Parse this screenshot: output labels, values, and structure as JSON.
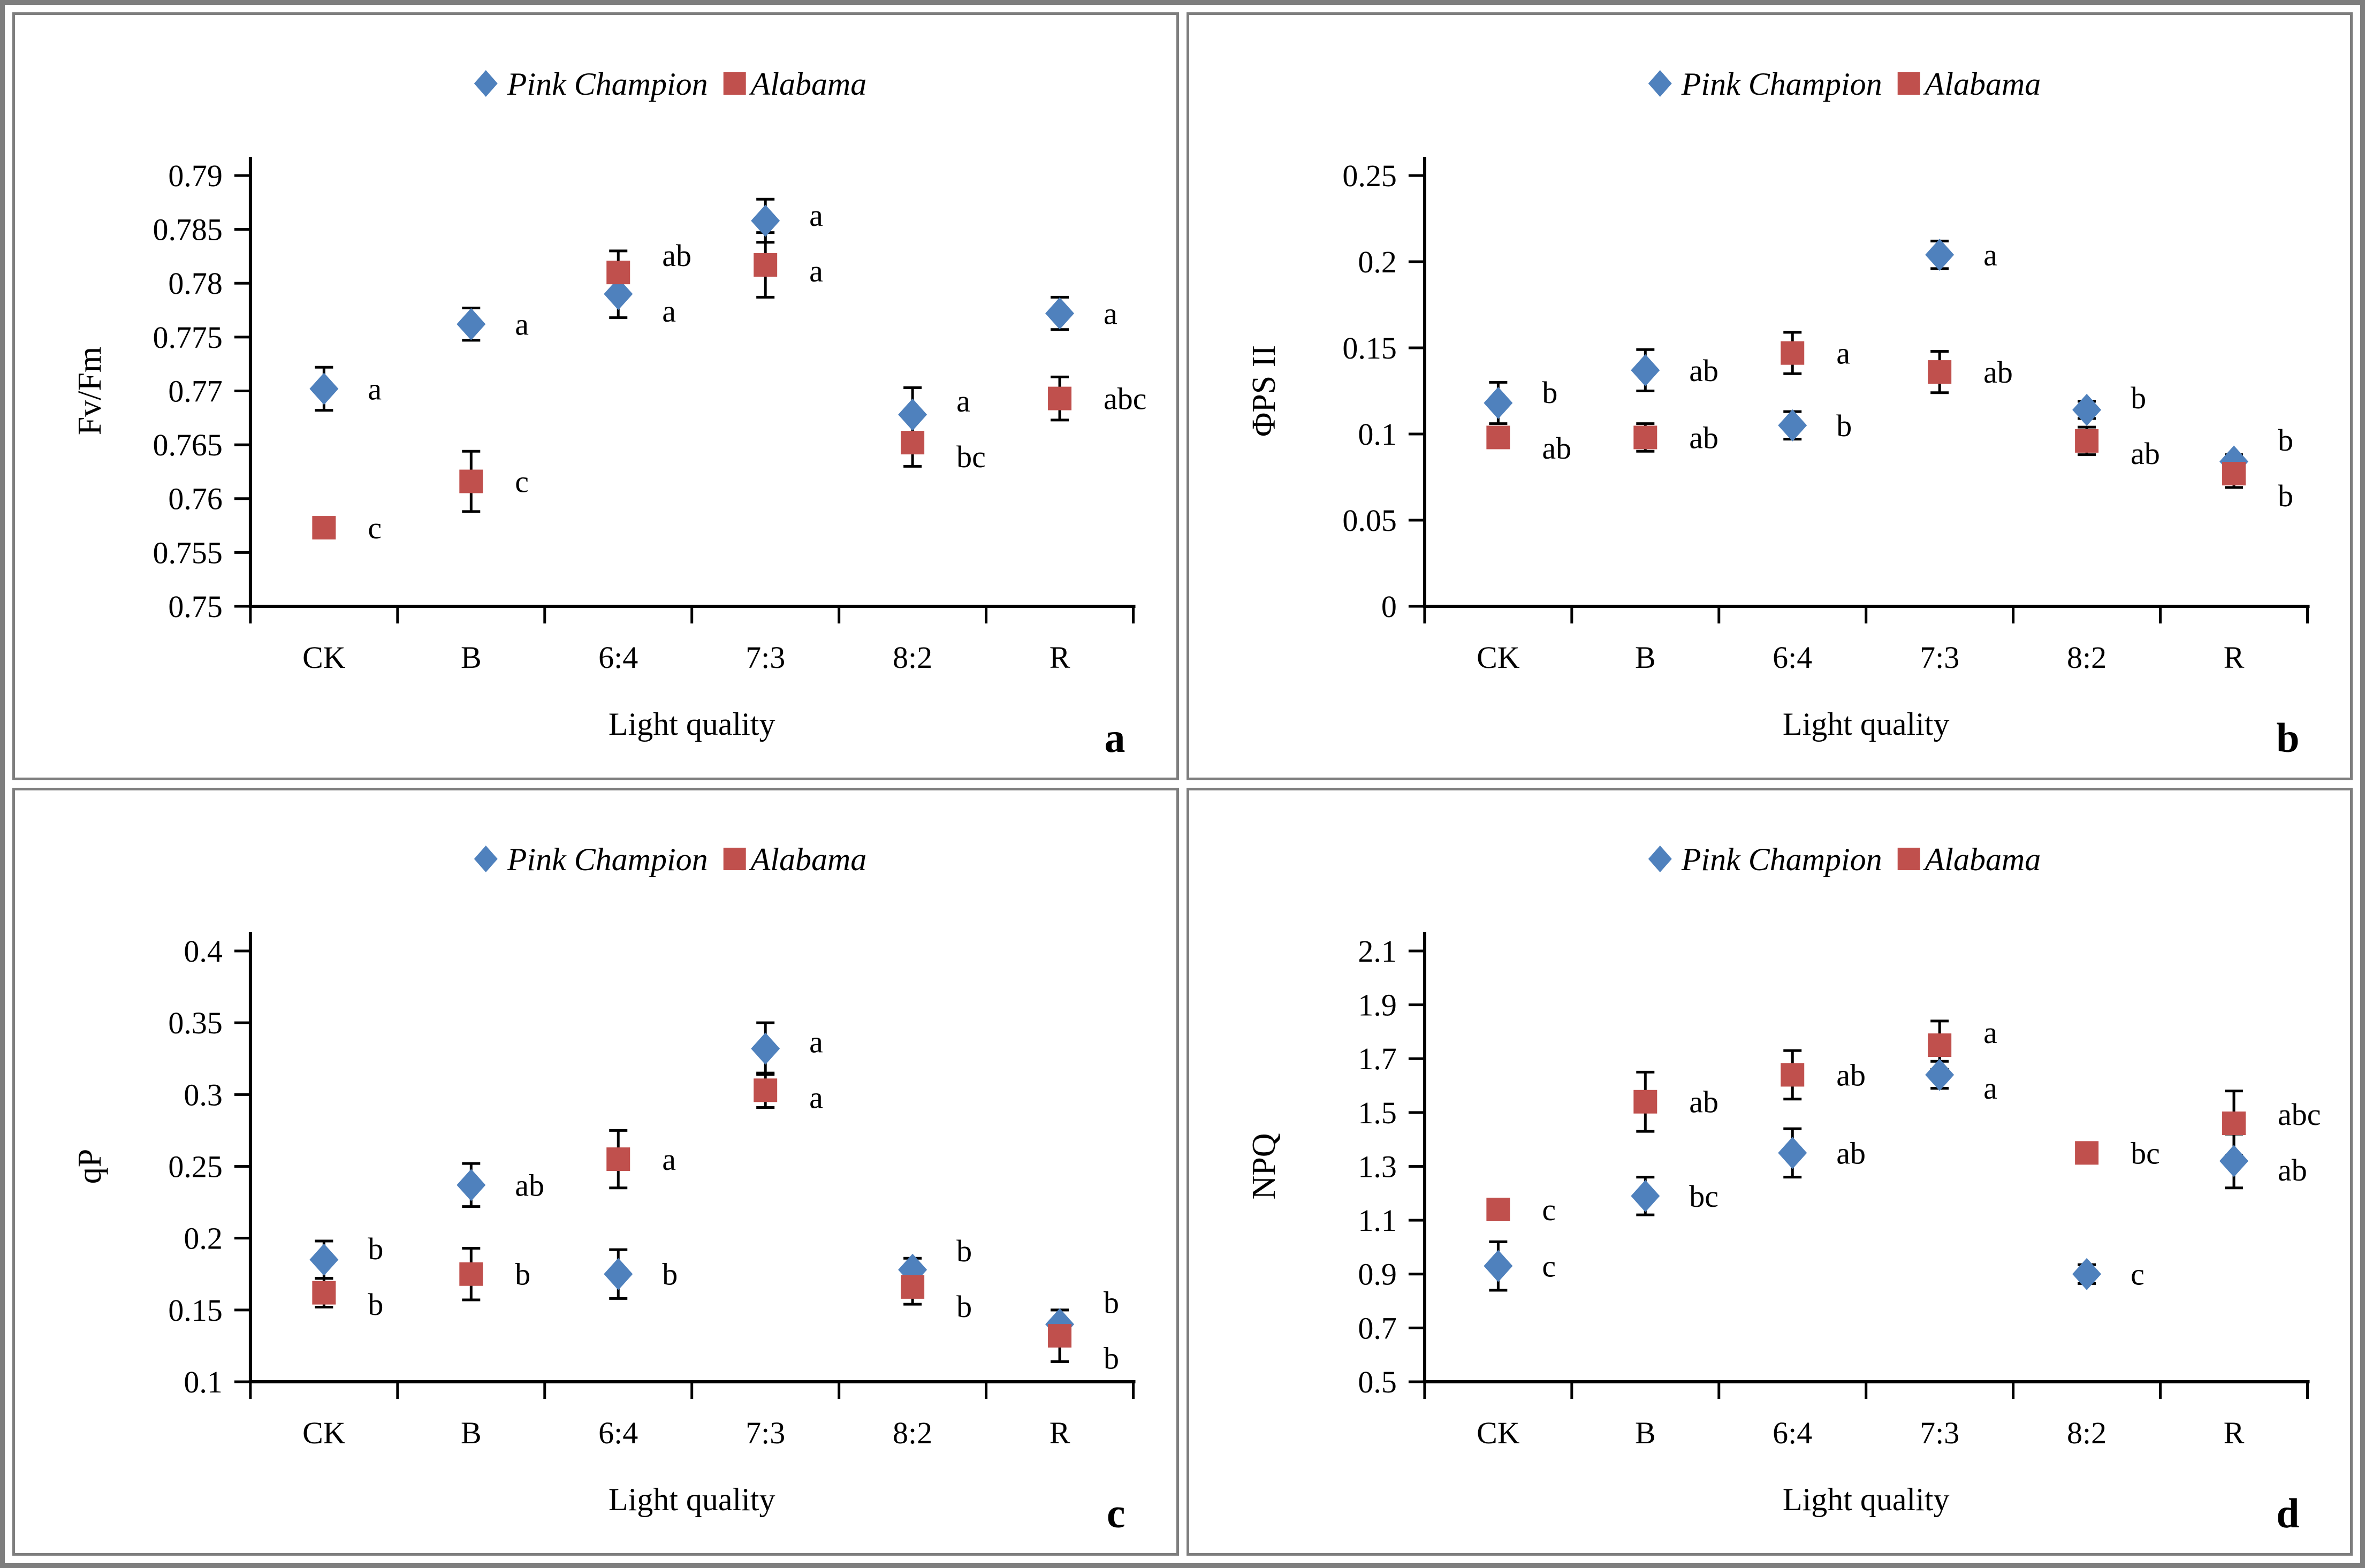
{
  "figure": {
    "panel_letters": [
      "a",
      "b",
      "c",
      "d"
    ],
    "x_axis_label": "Light quality",
    "categories": [
      "CK",
      "B",
      "6:4",
      "7:3",
      "8:2",
      "R"
    ]
  },
  "legend": {
    "items": [
      {
        "label": "Pink Champion",
        "marker": "diamond",
        "color": "#4F81BD"
      },
      {
        "label": "Alabama",
        "marker": "square",
        "color": "#C0504D"
      }
    ]
  },
  "chart_data": [
    {
      "panel": "a",
      "type": "scatter",
      "title": "",
      "xlabel": "Light quality",
      "ylabel": "Fv/Fm",
      "categories": [
        "CK",
        "B",
        "6:4",
        "7:3",
        "8:2",
        "R"
      ],
      "ylim": [
        0.75,
        0.79
      ],
      "ytick_step": 0.005,
      "ytick_decimals": 3,
      "grid": false,
      "legend_position": "top",
      "series": [
        {
          "name": "Pink Champion",
          "marker": "diamond",
          "color": "#4F81BD",
          "values": [
            0.7702,
            0.7762,
            0.779,
            0.7858,
            0.7678,
            0.7772
          ],
          "errors": [
            0.002,
            0.0015,
            0.0022,
            0.002,
            0.0025,
            0.0015
          ],
          "letters": [
            "a",
            "a",
            "a",
            "a",
            "a",
            "a"
          ]
        },
        {
          "name": "Alabama",
          "marker": "square",
          "color": "#C0504D",
          "values": [
            0.7573,
            0.7616,
            0.781,
            0.7817,
            0.7652,
            0.7693
          ],
          "errors": [
            0.0008,
            0.0028,
            0.002,
            0.003,
            0.0022,
            0.002
          ],
          "letters": [
            "c",
            "c",
            "ab",
            "a",
            "bc",
            "abc"
          ]
        }
      ]
    },
    {
      "panel": "b",
      "type": "scatter",
      "title": "",
      "xlabel": "Light quality",
      "ylabel": "ΦPS II",
      "categories": [
        "CK",
        "B",
        "6:4",
        "7:3",
        "8:2",
        "R"
      ],
      "ylim": [
        0,
        0.25
      ],
      "ytick_step": 0.05,
      "ytick_decimals": 2,
      "grid": false,
      "legend_position": "top",
      "series": [
        {
          "name": "Pink Champion",
          "marker": "diamond",
          "color": "#4F81BD",
          "values": [
            0.118,
            0.137,
            0.105,
            0.204,
            0.114,
            0.084
          ],
          "errors": [
            0.012,
            0.012,
            0.008,
            0.008,
            0.005,
            0.004
          ],
          "letters": [
            "b",
            "ab",
            "b",
            "a",
            "b",
            "b"
          ]
        },
        {
          "name": "Alabama",
          "marker": "square",
          "color": "#C0504D",
          "values": [
            0.098,
            0.098,
            0.147,
            0.136,
            0.096,
            0.077
          ],
          "errors": [
            0.005,
            0.008,
            0.012,
            0.012,
            0.008,
            0.008
          ],
          "letters": [
            "ab",
            "ab",
            "a",
            "ab",
            "ab",
            "b"
          ]
        }
      ]
    },
    {
      "panel": "c",
      "type": "scatter",
      "title": "",
      "xlabel": "Light quality",
      "ylabel": "qP",
      "categories": [
        "CK",
        "B",
        "6:4",
        "7:3",
        "8:2",
        "R"
      ],
      "ylim": [
        0.1,
        0.4
      ],
      "ytick_step": 0.05,
      "ytick_decimals": 2,
      "grid": false,
      "legend_position": "top",
      "series": [
        {
          "name": "Pink Champion",
          "marker": "diamond",
          "color": "#4F81BD",
          "values": [
            0.185,
            0.237,
            0.175,
            0.332,
            0.178,
            0.14
          ],
          "errors": [
            0.013,
            0.015,
            0.017,
            0.018,
            0.008,
            0.01
          ],
          "letters": [
            "b",
            "ab",
            "b",
            "a",
            "b",
            "b"
          ]
        },
        {
          "name": "Alabama",
          "marker": "square",
          "color": "#C0504D",
          "values": [
            0.162,
            0.175,
            0.255,
            0.303,
            0.166,
            0.132
          ],
          "errors": [
            0.01,
            0.018,
            0.02,
            0.012,
            0.012,
            0.018
          ],
          "letters": [
            "b",
            "b",
            "a",
            "a",
            "b",
            "b"
          ]
        }
      ]
    },
    {
      "panel": "d",
      "type": "scatter",
      "title": "",
      "xlabel": "Light quality",
      "ylabel": "NPQ",
      "categories": [
        "CK",
        "B",
        "6:4",
        "7:3",
        "8:2",
        "R"
      ],
      "ylim": [
        0.5,
        2.1
      ],
      "ytick_step": 0.2,
      "ytick_decimals": 1,
      "grid": false,
      "legend_position": "top",
      "series": [
        {
          "name": "Pink Champion",
          "marker": "diamond",
          "color": "#4F81BD",
          "values": [
            0.93,
            1.19,
            1.35,
            1.64,
            0.9,
            1.32
          ],
          "errors": [
            0.09,
            0.07,
            0.09,
            0.05,
            0.035,
            0.1
          ],
          "letters": [
            "c",
            "bc",
            "ab",
            "a",
            "c",
            "ab"
          ]
        },
        {
          "name": "Alabama",
          "marker": "square",
          "color": "#C0504D",
          "values": [
            1.14,
            1.54,
            1.64,
            1.75,
            1.35,
            1.46
          ],
          "errors": [
            0,
            0.11,
            0.09,
            0.09,
            0,
            0.12
          ],
          "letters": [
            "c",
            "ab",
            "ab",
            "a",
            "bc",
            "abc"
          ]
        }
      ]
    }
  ]
}
